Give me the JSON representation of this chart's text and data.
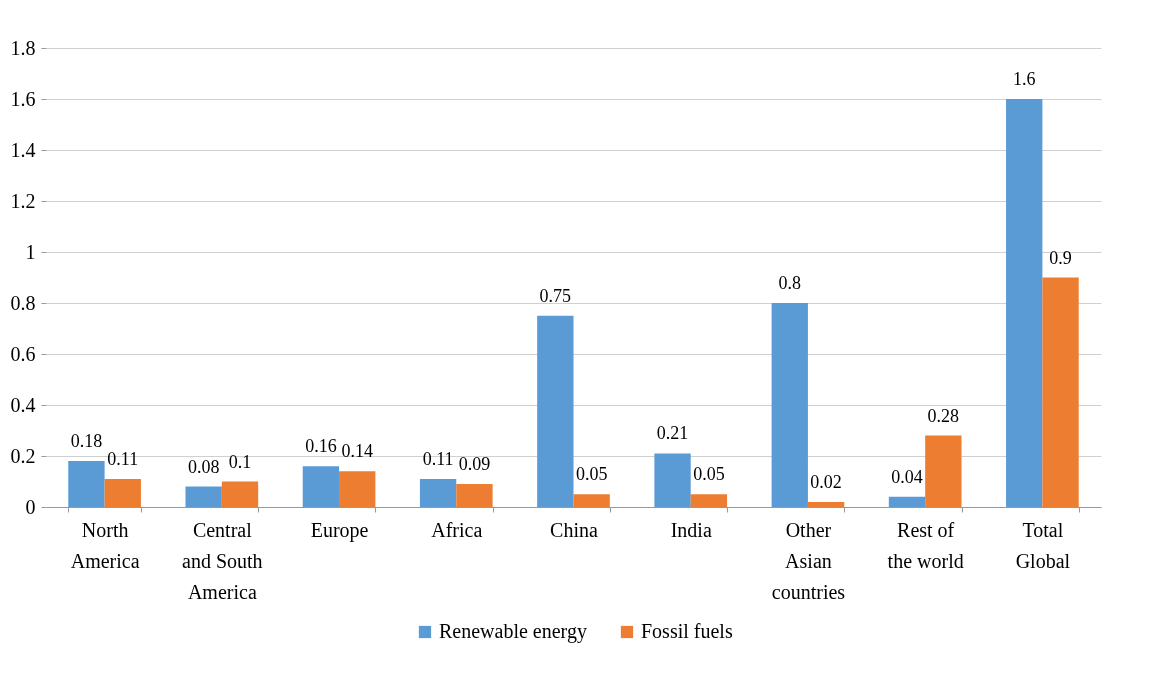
{
  "chart_data": {
    "type": "bar",
    "categories": [
      "North America",
      "Central and South America",
      "Europe",
      "Africa",
      "China",
      "India",
      "Other Asian countries",
      "Rest of the world",
      "Total Global"
    ],
    "series": [
      {
        "name": "Renewable energy",
        "color": "#5b9bd5",
        "values": [
          0.18,
          0.08,
          0.16,
          0.11,
          0.75,
          0.21,
          0.8,
          0.04,
          1.6
        ]
      },
      {
        "name": "Fossil fuels",
        "color": "#ed7d31",
        "values": [
          0.11,
          0.1,
          0.14,
          0.09,
          0.05,
          0.05,
          0.02,
          0.28,
          0.9
        ]
      }
    ],
    "ylim": [
      0,
      1.8
    ],
    "yticks": [
      0,
      0.2,
      0.4,
      0.6,
      0.8,
      1,
      1.2,
      1.4,
      1.6,
      1.8
    ],
    "grid": "y",
    "legend": "bottom",
    "data_labels": true
  }
}
